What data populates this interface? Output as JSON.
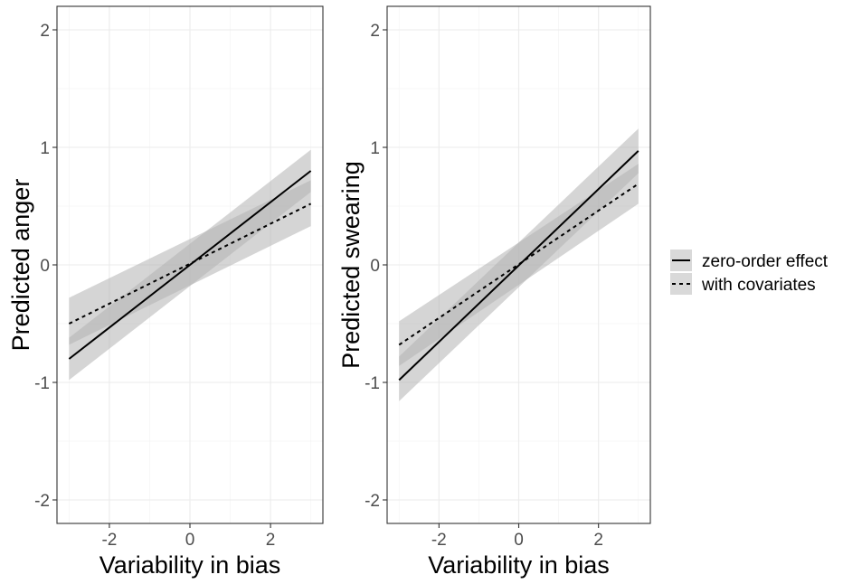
{
  "chart_data": [
    {
      "type": "line",
      "xlabel": "Variability in bias",
      "ylabel": "Predicted anger",
      "xlim": [
        -3.3,
        3.3
      ],
      "ylim": [
        -2.2,
        2.2
      ],
      "x_ticks": [
        -2,
        0,
        2
      ],
      "x_tick_labels": [
        "-2",
        "0",
        "2"
      ],
      "y_ticks": [
        -2,
        -1,
        0,
        1,
        2
      ],
      "y_tick_labels": [
        "-2",
        "-1",
        "0",
        "1",
        "2"
      ],
      "grid": true,
      "series": [
        {
          "name": "zero-order effect",
          "linetype": "solid",
          "x": [
            -3,
            3
          ],
          "y": [
            -0.8,
            0.8
          ],
          "ci_lower": [
            -0.98,
            0.62
          ],
          "ci_upper": [
            -0.62,
            0.98
          ]
        },
        {
          "name": "with covariates",
          "linetype": "dashed",
          "x": [
            -3,
            3
          ],
          "y": [
            -0.5,
            0.52
          ],
          "ci_lower": [
            -0.68,
            0.33
          ],
          "ci_upper": [
            -0.28,
            0.72
          ]
        }
      ]
    },
    {
      "type": "line",
      "xlabel": "Variability in bias",
      "ylabel": "Predicted swearing",
      "xlim": [
        -3.3,
        3.3
      ],
      "ylim": [
        -2.2,
        2.2
      ],
      "x_ticks": [
        -2,
        0,
        2
      ],
      "x_tick_labels": [
        "-2",
        "0",
        "2"
      ],
      "y_ticks": [
        -2,
        -1,
        0,
        1,
        2
      ],
      "y_tick_labels": [
        "-2",
        "-1",
        "0",
        "1",
        "2"
      ],
      "grid": true,
      "series": [
        {
          "name": "zero-order effect",
          "linetype": "solid",
          "x": [
            -3,
            3
          ],
          "y": [
            -0.98,
            0.97
          ],
          "ci_lower": [
            -1.16,
            0.78
          ],
          "ci_upper": [
            -0.78,
            1.16
          ]
        },
        {
          "name": "with covariates",
          "linetype": "dashed",
          "x": [
            -3,
            3
          ],
          "y": [
            -0.68,
            0.69
          ],
          "ci_lower": [
            -0.86,
            0.52
          ],
          "ci_upper": [
            -0.48,
            0.86
          ]
        }
      ]
    }
  ],
  "legend": {
    "position": "right",
    "items": [
      {
        "label": "zero-order effect",
        "linetype": "solid"
      },
      {
        "label": "with covariates",
        "linetype": "dashed"
      }
    ]
  },
  "colors": {
    "line": "#000000",
    "ci_fill": "#b3b3b3",
    "panel_border": "#333333",
    "grid_major": "#ebebeb",
    "grid_minor": "#f5f5f5",
    "tick_label": "#4d4d4d",
    "legend_key_bg": "#d9d9d9"
  }
}
